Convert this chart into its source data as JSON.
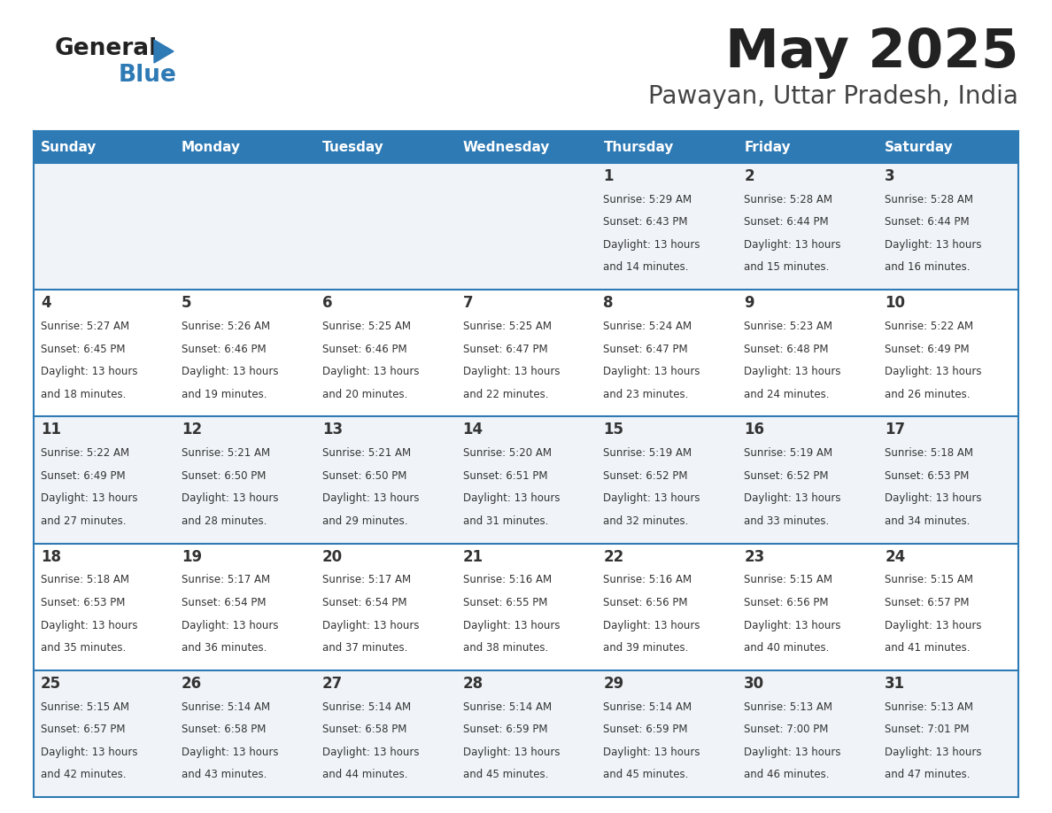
{
  "title": "May 2025",
  "subtitle": "Pawayan, Uttar Pradesh, India",
  "header_bg": "#2E7AB5",
  "header_text_color": "#FFFFFF",
  "cell_bg_odd": "#F0F4F8",
  "cell_bg_even": "#FFFFFF",
  "border_color": "#2E7AB5",
  "text_color": "#333333",
  "day_names": [
    "Sunday",
    "Monday",
    "Tuesday",
    "Wednesday",
    "Thursday",
    "Friday",
    "Saturday"
  ],
  "days": [
    {
      "day": 1,
      "col": 4,
      "row": 0,
      "sunrise": "5:29 AM",
      "sunset": "6:43 PM",
      "daylight_min": 14
    },
    {
      "day": 2,
      "col": 5,
      "row": 0,
      "sunrise": "5:28 AM",
      "sunset": "6:44 PM",
      "daylight_min": 15
    },
    {
      "day": 3,
      "col": 6,
      "row": 0,
      "sunrise": "5:28 AM",
      "sunset": "6:44 PM",
      "daylight_min": 16
    },
    {
      "day": 4,
      "col": 0,
      "row": 1,
      "sunrise": "5:27 AM",
      "sunset": "6:45 PM",
      "daylight_min": 18
    },
    {
      "day": 5,
      "col": 1,
      "row": 1,
      "sunrise": "5:26 AM",
      "sunset": "6:46 PM",
      "daylight_min": 19
    },
    {
      "day": 6,
      "col": 2,
      "row": 1,
      "sunrise": "5:25 AM",
      "sunset": "6:46 PM",
      "daylight_min": 20
    },
    {
      "day": 7,
      "col": 3,
      "row": 1,
      "sunrise": "5:25 AM",
      "sunset": "6:47 PM",
      "daylight_min": 22
    },
    {
      "day": 8,
      "col": 4,
      "row": 1,
      "sunrise": "5:24 AM",
      "sunset": "6:47 PM",
      "daylight_min": 23
    },
    {
      "day": 9,
      "col": 5,
      "row": 1,
      "sunrise": "5:23 AM",
      "sunset": "6:48 PM",
      "daylight_min": 24
    },
    {
      "day": 10,
      "col": 6,
      "row": 1,
      "sunrise": "5:22 AM",
      "sunset": "6:49 PM",
      "daylight_min": 26
    },
    {
      "day": 11,
      "col": 0,
      "row": 2,
      "sunrise": "5:22 AM",
      "sunset": "6:49 PM",
      "daylight_min": 27
    },
    {
      "day": 12,
      "col": 1,
      "row": 2,
      "sunrise": "5:21 AM",
      "sunset": "6:50 PM",
      "daylight_min": 28
    },
    {
      "day": 13,
      "col": 2,
      "row": 2,
      "sunrise": "5:21 AM",
      "sunset": "6:50 PM",
      "daylight_min": 29
    },
    {
      "day": 14,
      "col": 3,
      "row": 2,
      "sunrise": "5:20 AM",
      "sunset": "6:51 PM",
      "daylight_min": 31
    },
    {
      "day": 15,
      "col": 4,
      "row": 2,
      "sunrise": "5:19 AM",
      "sunset": "6:52 PM",
      "daylight_min": 32
    },
    {
      "day": 16,
      "col": 5,
      "row": 2,
      "sunrise": "5:19 AM",
      "sunset": "6:52 PM",
      "daylight_min": 33
    },
    {
      "day": 17,
      "col": 6,
      "row": 2,
      "sunrise": "5:18 AM",
      "sunset": "6:53 PM",
      "daylight_min": 34
    },
    {
      "day": 18,
      "col": 0,
      "row": 3,
      "sunrise": "5:18 AM",
      "sunset": "6:53 PM",
      "daylight_min": 35
    },
    {
      "day": 19,
      "col": 1,
      "row": 3,
      "sunrise": "5:17 AM",
      "sunset": "6:54 PM",
      "daylight_min": 36
    },
    {
      "day": 20,
      "col": 2,
      "row": 3,
      "sunrise": "5:17 AM",
      "sunset": "6:54 PM",
      "daylight_min": 37
    },
    {
      "day": 21,
      "col": 3,
      "row": 3,
      "sunrise": "5:16 AM",
      "sunset": "6:55 PM",
      "daylight_min": 38
    },
    {
      "day": 22,
      "col": 4,
      "row": 3,
      "sunrise": "5:16 AM",
      "sunset": "6:56 PM",
      "daylight_min": 39
    },
    {
      "day": 23,
      "col": 5,
      "row": 3,
      "sunrise": "5:15 AM",
      "sunset": "6:56 PM",
      "daylight_min": 40
    },
    {
      "day": 24,
      "col": 6,
      "row": 3,
      "sunrise": "5:15 AM",
      "sunset": "6:57 PM",
      "daylight_min": 41
    },
    {
      "day": 25,
      "col": 0,
      "row": 4,
      "sunrise": "5:15 AM",
      "sunset": "6:57 PM",
      "daylight_min": 42
    },
    {
      "day": 26,
      "col": 1,
      "row": 4,
      "sunrise": "5:14 AM",
      "sunset": "6:58 PM",
      "daylight_min": 43
    },
    {
      "day": 27,
      "col": 2,
      "row": 4,
      "sunrise": "5:14 AM",
      "sunset": "6:58 PM",
      "daylight_min": 44
    },
    {
      "day": 28,
      "col": 3,
      "row": 4,
      "sunrise": "5:14 AM",
      "sunset": "6:59 PM",
      "daylight_min": 45
    },
    {
      "day": 29,
      "col": 4,
      "row": 4,
      "sunrise": "5:14 AM",
      "sunset": "6:59 PM",
      "daylight_min": 45
    },
    {
      "day": 30,
      "col": 5,
      "row": 4,
      "sunrise": "5:13 AM",
      "sunset": "7:00 PM",
      "daylight_min": 46
    },
    {
      "day": 31,
      "col": 6,
      "row": 4,
      "sunrise": "5:13 AM",
      "sunset": "7:01 PM",
      "daylight_min": 47
    }
  ],
  "num_rows": 5,
  "num_cols": 7,
  "logo_color_general": "#222222",
  "logo_color_blue": "#2E7AB5",
  "title_color": "#222222",
  "subtitle_color": "#444444"
}
